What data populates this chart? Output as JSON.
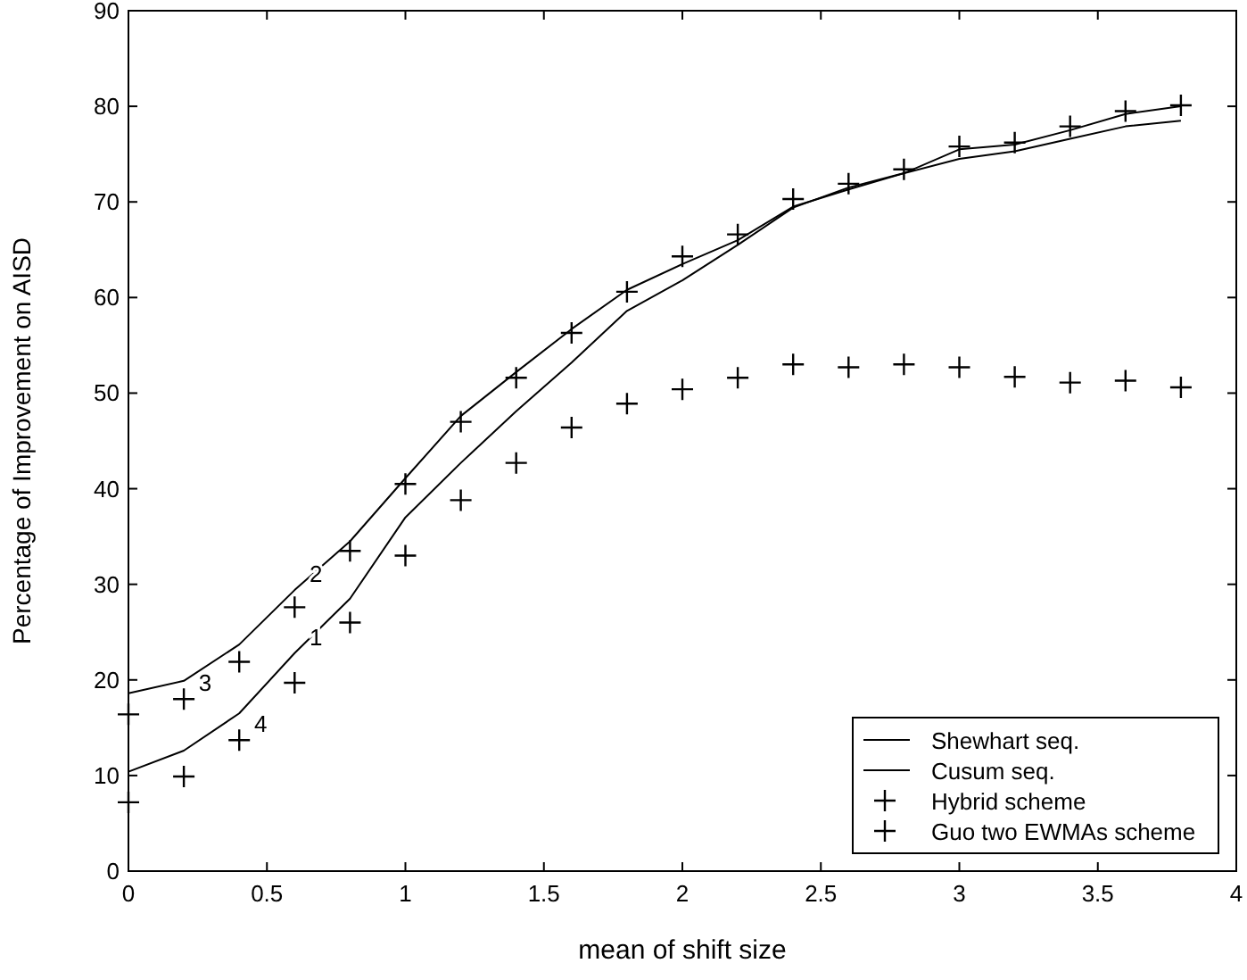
{
  "chart_data": {
    "type": "line",
    "xlabel": "mean of shift size",
    "ylabel": "Percentage of Improvement on AISD",
    "xlim": [
      0,
      4
    ],
    "xticks": [
      0,
      0.5,
      1,
      1.5,
      2,
      2.5,
      3,
      3.5,
      4
    ],
    "ylim": [
      0,
      90
    ],
    "yticks": [
      0,
      10,
      20,
      30,
      40,
      50,
      60,
      70,
      80,
      90
    ],
    "grid": false,
    "legend": "bottom right",
    "x": [
      0,
      0.2,
      0.4,
      0.6,
      0.8,
      1,
      1.2,
      1.4,
      1.6,
      1.8,
      2,
      2.2,
      2.4,
      2.6,
      2.8,
      3,
      3.2,
      3.4,
      3.6,
      3.8
    ],
    "series": [
      {
        "name": "Shewhart seq.",
        "color": "#000000",
        "marker": "none",
        "values": [
          10.4,
          12.6,
          16.5,
          22.8,
          28.5,
          37.0,
          42.7,
          48.1,
          53.2,
          58.6,
          61.8,
          65.5,
          69.4,
          71.5,
          73.0,
          74.5,
          75.3,
          76.6,
          77.9,
          78.5
        ]
      },
      {
        "name": "Cusum seq.",
        "color": "#000000",
        "marker": "none",
        "values": [
          18.6,
          19.9,
          23.7,
          29.4,
          34.5,
          41.1,
          47.6,
          52.2,
          56.7,
          60.8,
          63.5,
          66.0,
          69.5,
          71.3,
          73.0,
          75.5,
          76.0,
          77.5,
          79.2,
          80.0
        ]
      },
      {
        "name": "Hybrid scheme",
        "type": "scatter",
        "color": "#000000",
        "marker": "cross",
        "values": [
          16.4,
          18.0,
          21.9,
          27.6,
          33.5,
          40.5,
          47.0,
          51.6,
          56.3,
          60.6,
          64.3,
          66.6,
          70.3,
          71.9,
          73.4,
          75.8,
          76.2,
          77.9,
          79.5,
          80.1
        ]
      },
      {
        "name": "Guo two EWMAs scheme",
        "type": "scatter",
        "color": "#000000",
        "marker": "cross",
        "values": [
          7.2,
          9.9,
          13.7,
          19.7,
          26.0,
          33.0,
          38.8,
          42.7,
          46.4,
          48.9,
          50.4,
          51.6,
          53.0,
          52.7,
          53.0,
          52.7,
          51.7,
          51.1,
          51.3,
          50.6
        ]
      }
    ],
    "annotations": [
      {
        "text": "1",
        "x": 0.6,
        "y": 22.8
      },
      {
        "text": "2",
        "x": 0.6,
        "y": 29.4
      },
      {
        "text": "3",
        "x": 0.2,
        "y": 18.0
      },
      {
        "text": "4",
        "x": 0.4,
        "y": 13.7
      }
    ]
  }
}
